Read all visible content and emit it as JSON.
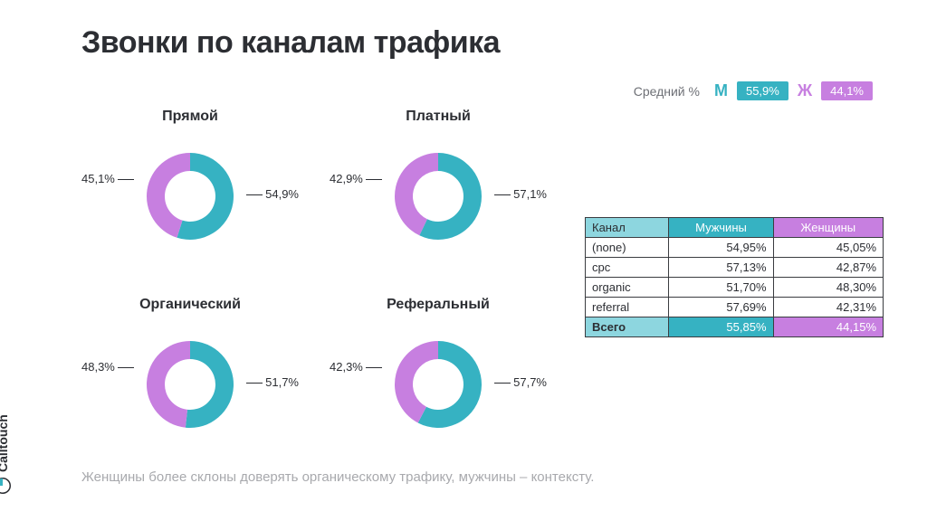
{
  "title": "Звонки по каналам трафика",
  "legend": {
    "avg_label": "Средний %",
    "male_letter": "М",
    "female_letter": "Ж",
    "male_value": "55,9%",
    "female_value": "44,1%"
  },
  "colors": {
    "male": "#36b2c2",
    "female": "#c77fe0",
    "male_light": "#8dd6df",
    "bg": "#ffffff",
    "text": "#2c2e33",
    "muted": "#a8a9ad",
    "border": "#3a3c40"
  },
  "donut": {
    "outer_r": 48,
    "inner_r": 28,
    "label_fontsize": 13,
    "title_fontsize": 16
  },
  "charts": [
    {
      "title": "Прямой",
      "male": 54.9,
      "female": 45.1,
      "male_label": "54,9%",
      "female_label": "45,1%"
    },
    {
      "title": "Платный",
      "male": 57.1,
      "female": 42.9,
      "male_label": "57,1%",
      "female_label": "42,9%"
    },
    {
      "title": "Органический",
      "male": 51.7,
      "female": 48.3,
      "male_label": "51,7%",
      "female_label": "48,3%"
    },
    {
      "title": "Реферальный",
      "male": 57.7,
      "female": 42.3,
      "male_label": "57,7%",
      "female_label": "42,3%"
    }
  ],
  "table": {
    "headers": {
      "channel": "Канал",
      "male": "Мужчины",
      "female": "Женщины"
    },
    "rows": [
      {
        "channel": "(none)",
        "male": "54,95%",
        "female": "45,05%"
      },
      {
        "channel": "cpc",
        "male": "57,13%",
        "female": "42,87%"
      },
      {
        "channel": "organic",
        "male": "51,70%",
        "female": "48,30%"
      },
      {
        "channel": "referral",
        "male": "57,69%",
        "female": "42,31%"
      }
    ],
    "total": {
      "label": "Всего",
      "male": "55,85%",
      "female": "44,15%"
    }
  },
  "footnote": "Женщины более склоны доверять органическому трафику, мужчины – контексту.",
  "brand": "Calltouch"
}
